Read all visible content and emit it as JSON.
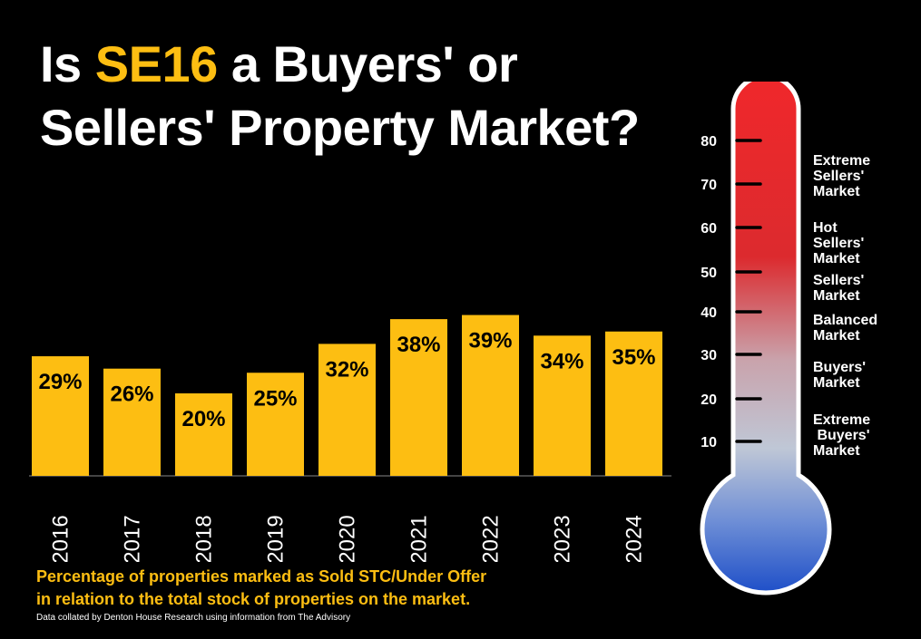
{
  "title": {
    "part1": "Is ",
    "highlight": "SE16",
    "part2": " a Buyers' or",
    "line2": "Sellers' Property Market?"
  },
  "caption": {
    "line1": "Percentage of properties marked as Sold STC/Under Offer",
    "line2": "in relation to the total stock of properties on the market."
  },
  "source": "Data collated by Denton House Research using information from The Advisory",
  "colors": {
    "bar": "#FDBE12",
    "highlight": "#FDBE12",
    "background": "#000000",
    "thermo_top": "#F0282B",
    "thermo_bottom": "#1E4FC8"
  },
  "chart_data": {
    "type": "bar",
    "categories": [
      "2016",
      "2017",
      "2018",
      "2019",
      "2020",
      "2021",
      "2022",
      "2023",
      "2024"
    ],
    "values": [
      29,
      26,
      20,
      25,
      32,
      38,
      39,
      34,
      35
    ],
    "data_labels": [
      "29%",
      "26%",
      "20%",
      "25%",
      "32%",
      "38%",
      "39%",
      "34%",
      "35%"
    ],
    "ylim": [
      0,
      40
    ],
    "grid": false,
    "legend": "none"
  },
  "thermometer": {
    "ticks": [
      "80",
      "70",
      "60",
      "50",
      "40",
      "30",
      "20",
      "10"
    ],
    "labels": [
      [
        "Extreme",
        "Sellers'",
        "Market"
      ],
      [
        "Hot",
        "Sellers'",
        "Market"
      ],
      [
        "Sellers'",
        "Market"
      ],
      [
        "Balanced",
        "Market"
      ],
      [
        "Buyers'",
        "Market"
      ],
      [
        "Extreme",
        " Buyers'",
        "Market"
      ]
    ]
  }
}
